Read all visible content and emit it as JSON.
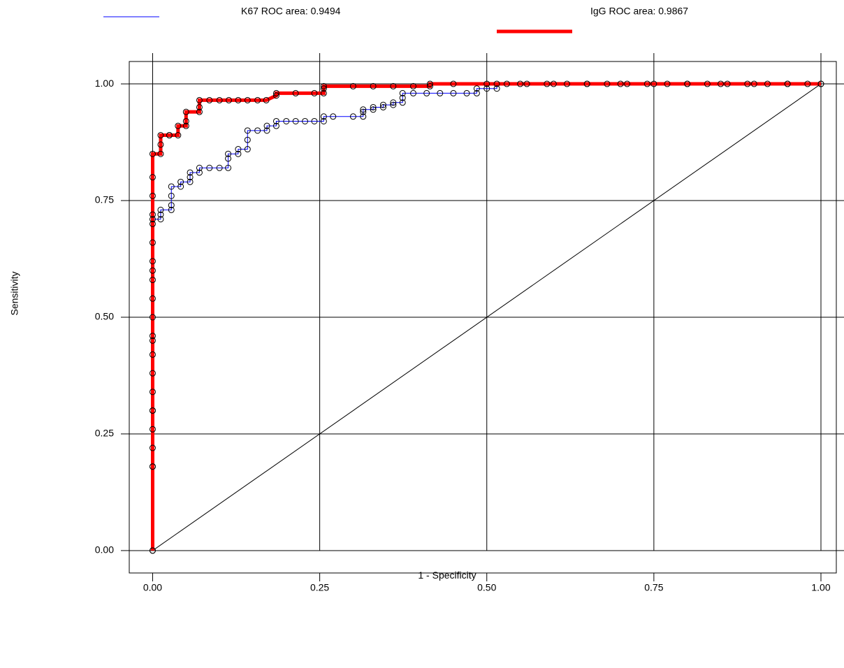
{
  "chart_data": {
    "type": "roc",
    "xlabel": "1 - Specificity",
    "ylabel": "Sensitivity",
    "xlim": [
      -0.035,
      1.023
    ],
    "ylim": [
      -0.048,
      1.048
    ],
    "xticks": [
      {
        "value": 0,
        "label": "0.00"
      },
      {
        "value": 0.25,
        "label": "0.25"
      },
      {
        "value": 0.5,
        "label": "0.50"
      },
      {
        "value": 0.75,
        "label": "0.75"
      },
      {
        "value": 1,
        "label": "1.00"
      }
    ],
    "yticks": [
      {
        "value": 0,
        "label": "0.00"
      },
      {
        "value": 0.25,
        "label": "0.25"
      },
      {
        "value": 0.5,
        "label": "0.50"
      },
      {
        "value": 0.75,
        "label": "0.75"
      },
      {
        "value": 1,
        "label": "1.00"
      }
    ],
    "grid": true,
    "diagonal": true,
    "series": [
      {
        "name": "K67 ROC area: 0.9494",
        "color": "#0000ff",
        "width": 1,
        "x": [
          0,
          0,
          0,
          0,
          0,
          0,
          0,
          0,
          0,
          0,
          0,
          0,
          0,
          0,
          0,
          0,
          0.012,
          0.012,
          0.012,
          0.028,
          0.028,
          0.028,
          0.028,
          0.042,
          0.042,
          0.056,
          0.056,
          0.056,
          0.07,
          0.07,
          0.085,
          0.1,
          0.113,
          0.113,
          0.113,
          0.128,
          0.128,
          0.142,
          0.142,
          0.142,
          0.157,
          0.171,
          0.171,
          0.185,
          0.185,
          0.2,
          0.214,
          0.228,
          0.242,
          0.256,
          0.256,
          0.27,
          0.3,
          0.315,
          0.315,
          0.315,
          0.33,
          0.33,
          0.345,
          0.345,
          0.36,
          0.36,
          0.374,
          0.374,
          0.374,
          0.39,
          0.41,
          0.43,
          0.45,
          0.47,
          0.485,
          0.485,
          0.5,
          0.515,
          0.515,
          0.53,
          0.56,
          0.59,
          0.62,
          0.65,
          0.68,
          0.71,
          0.74,
          0.77,
          0.8,
          0.83,
          0.86,
          0.89,
          0.92,
          0.95,
          0.98,
          1
        ],
        "values": [
          0,
          0.18,
          0.22,
          0.26,
          0.3,
          0.34,
          0.38,
          0.42,
          0.46,
          0.5,
          0.54,
          0.58,
          0.62,
          0.66,
          0.7,
          0.71,
          0.71,
          0.72,
          0.73,
          0.73,
          0.74,
          0.76,
          0.78,
          0.78,
          0.79,
          0.79,
          0.8,
          0.81,
          0.81,
          0.82,
          0.82,
          0.82,
          0.82,
          0.84,
          0.85,
          0.85,
          0.86,
          0.86,
          0.88,
          0.9,
          0.9,
          0.9,
          0.91,
          0.91,
          0.92,
          0.92,
          0.92,
          0.92,
          0.92,
          0.92,
          0.93,
          0.93,
          0.93,
          0.93,
          0.94,
          0.945,
          0.945,
          0.95,
          0.95,
          0.955,
          0.955,
          0.96,
          0.96,
          0.97,
          0.98,
          0.98,
          0.98,
          0.98,
          0.98,
          0.98,
          0.98,
          0.99,
          0.99,
          0.99,
          1,
          1,
          1,
          1,
          1,
          1,
          1,
          1,
          1,
          1,
          1,
          1,
          1,
          1,
          1,
          1,
          1,
          1
        ]
      },
      {
        "name": "IgG ROC area: 0.9867",
        "color": "#ff0000",
        "width": 5,
        "x": [
          0,
          0,
          0,
          0,
          0,
          0,
          0,
          0,
          0,
          0.012,
          0.012,
          0.012,
          0.025,
          0.025,
          0.038,
          0.038,
          0.05,
          0.05,
          0.05,
          0.07,
          0.07,
          0.07,
          0.085,
          0.1,
          0.114,
          0.128,
          0.142,
          0.157,
          0.17,
          0.185,
          0.185,
          0.214,
          0.242,
          0.256,
          0.256,
          0.256,
          0.3,
          0.33,
          0.36,
          0.39,
          0.415,
          0.415,
          0.45,
          0.5,
          0.55,
          0.6,
          0.65,
          0.7,
          0.75,
          0.8,
          0.85,
          0.9,
          0.95,
          1
        ],
        "values": [
          0,
          0.18,
          0.3,
          0.45,
          0.6,
          0.72,
          0.76,
          0.8,
          0.85,
          0.85,
          0.87,
          0.89,
          0.89,
          0.89,
          0.89,
          0.91,
          0.91,
          0.92,
          0.94,
          0.94,
          0.95,
          0.965,
          0.965,
          0.965,
          0.965,
          0.965,
          0.965,
          0.965,
          0.965,
          0.975,
          0.98,
          0.98,
          0.98,
          0.98,
          0.99,
          0.995,
          0.995,
          0.995,
          0.995,
          0.995,
          0.995,
          1,
          1,
          1,
          1,
          1,
          1,
          1,
          1,
          1,
          1,
          1,
          1,
          1
        ]
      }
    ]
  }
}
